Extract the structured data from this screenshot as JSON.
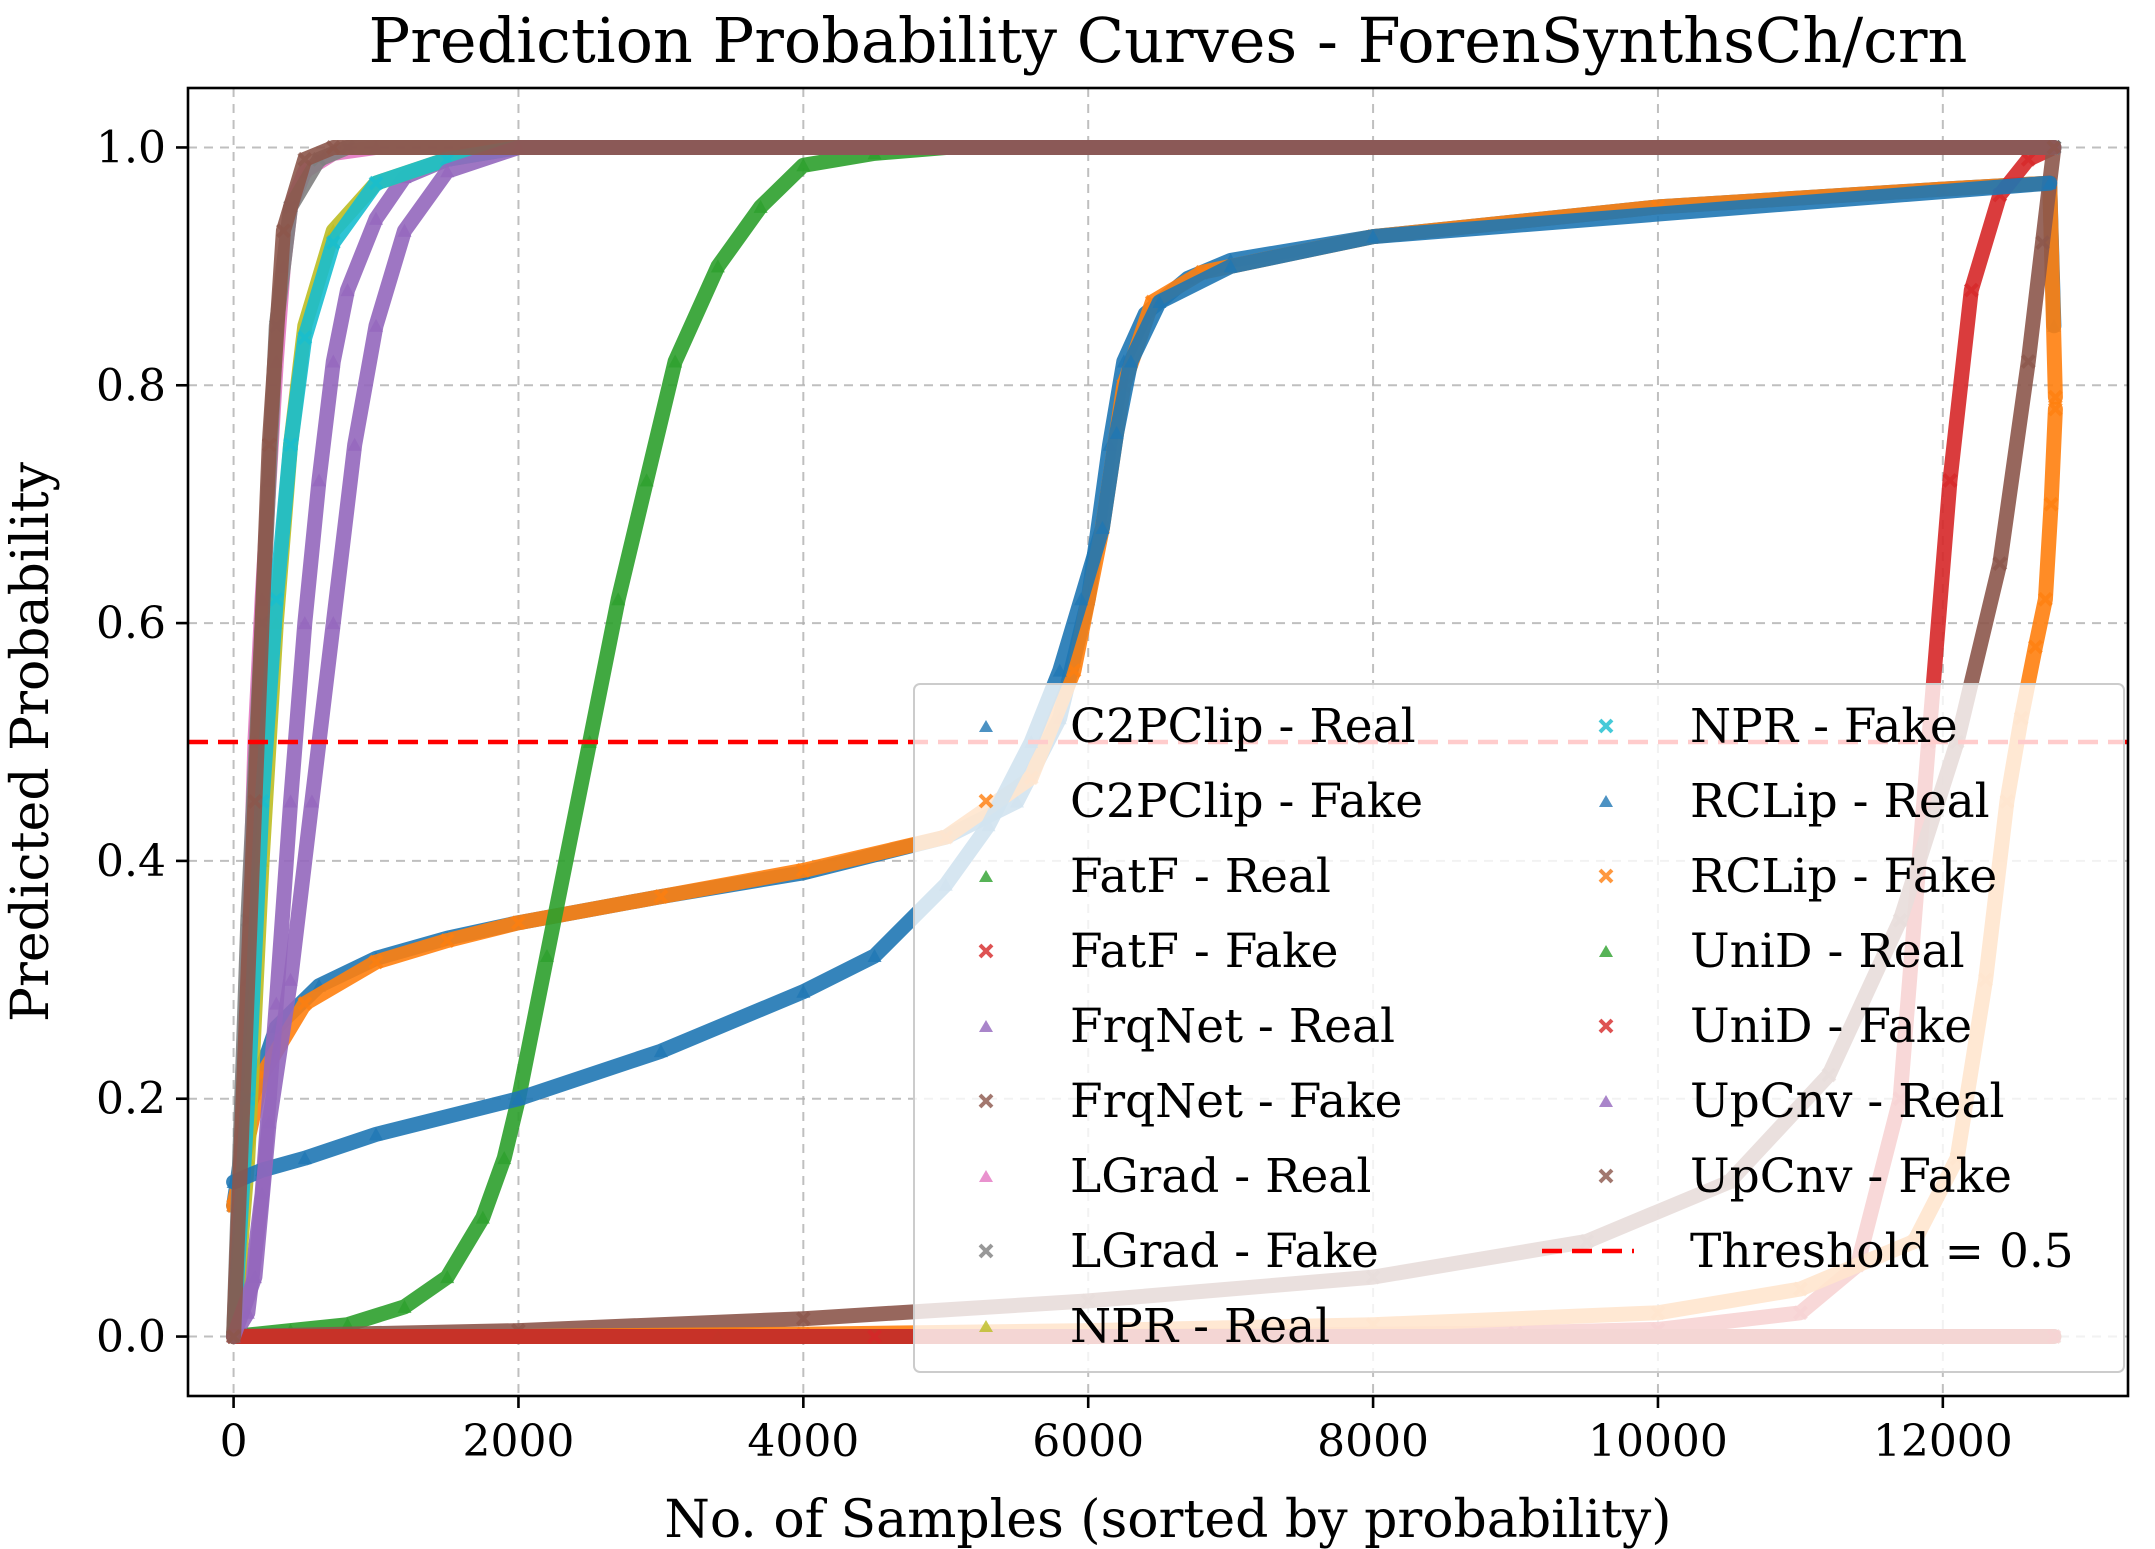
{
  "chart_data": {
    "type": "scatter",
    "title": "Prediction Probability Curves - ForenSynthsCh/crn",
    "xlabel": "No. of Samples (sorted by probability)",
    "ylabel": "Predicted Probability",
    "xlim": [
      -320,
      13300
    ],
    "ylim": [
      -0.05,
      1.05
    ],
    "xticks": [
      0,
      2000,
      4000,
      6000,
      8000,
      10000,
      12000
    ],
    "xtick_labels": [
      "0",
      "2000",
      "4000",
      "6000",
      "8000",
      "10000",
      "12000"
    ],
    "yticks": [
      0.0,
      0.2,
      0.4,
      0.6,
      0.8,
      1.0
    ],
    "ytick_labels": [
      "0.0",
      "0.2",
      "0.4",
      "0.6",
      "0.8",
      "1.0"
    ],
    "grid": true,
    "legend_position": "lower-right",
    "legend_columns": 2,
    "threshold": {
      "label": "Threshold = 0.5",
      "value": 0.5,
      "color": "#ff0000"
    },
    "series": [
      {
        "name": "C2PClip - Real",
        "color": "#1f77b4",
        "marker": "triangle",
        "points": [
          [
            0,
            0.11
          ],
          [
            100,
            0.19
          ],
          [
            300,
            0.26
          ],
          [
            600,
            0.295
          ],
          [
            1000,
            0.318
          ],
          [
            1500,
            0.335
          ],
          [
            2000,
            0.348
          ],
          [
            3000,
            0.37
          ],
          [
            4000,
            0.39
          ],
          [
            5000,
            0.42
          ],
          [
            5500,
            0.45
          ],
          [
            5800,
            0.52
          ],
          [
            6000,
            0.62
          ],
          [
            6150,
            0.75
          ],
          [
            6250,
            0.82
          ],
          [
            6400,
            0.86
          ],
          [
            6700,
            0.89
          ],
          [
            7000,
            0.905
          ],
          [
            8000,
            0.925
          ],
          [
            10000,
            0.95
          ],
          [
            12000,
            0.965
          ],
          [
            12750,
            0.97
          ],
          [
            12780,
            0.85
          ]
        ]
      },
      {
        "name": "C2PClip - Fake",
        "color": "#ff7f0e",
        "marker": "x",
        "points": [
          [
            0,
            0.11
          ],
          [
            200,
            0.22
          ],
          [
            500,
            0.28
          ],
          [
            1000,
            0.315
          ],
          [
            1500,
            0.333
          ],
          [
            2000,
            0.348
          ],
          [
            3000,
            0.37
          ],
          [
            4000,
            0.392
          ],
          [
            5000,
            0.42
          ],
          [
            5600,
            0.47
          ],
          [
            5900,
            0.56
          ],
          [
            6100,
            0.68
          ],
          [
            6250,
            0.8
          ],
          [
            6450,
            0.87
          ],
          [
            6800,
            0.895
          ],
          [
            8000,
            0.925
          ],
          [
            10000,
            0.95
          ],
          [
            12000,
            0.965
          ],
          [
            12750,
            0.97
          ],
          [
            12790,
            0.79
          ]
        ]
      },
      {
        "name": "FatF - Real",
        "color": "#2ca02c",
        "marker": "triangle",
        "points": [
          [
            0,
            0.0
          ],
          [
            400,
            0.005
          ],
          [
            800,
            0.01
          ],
          [
            1200,
            0.025
          ],
          [
            1500,
            0.05
          ],
          [
            1750,
            0.1
          ],
          [
            1900,
            0.15
          ],
          [
            2000,
            0.2
          ],
          [
            2200,
            0.32
          ],
          [
            2500,
            0.5
          ],
          [
            2700,
            0.62
          ],
          [
            2900,
            0.72
          ],
          [
            3100,
            0.82
          ],
          [
            3400,
            0.9
          ],
          [
            3700,
            0.95
          ],
          [
            4000,
            0.985
          ],
          [
            4500,
            0.995
          ],
          [
            5000,
            1.0
          ],
          [
            12780,
            1.0
          ]
        ]
      },
      {
        "name": "FatF - Fake",
        "color": "#d62728",
        "marker": "x",
        "points": [
          [
            0,
            0.0
          ],
          [
            6000,
            0.0
          ],
          [
            9000,
            0.003
          ],
          [
            10000,
            0.006
          ],
          [
            11000,
            0.02
          ],
          [
            11400,
            0.06
          ],
          [
            11700,
            0.2
          ],
          [
            11900,
            0.5
          ],
          [
            12050,
            0.72
          ],
          [
            12200,
            0.88
          ],
          [
            12400,
            0.96
          ],
          [
            12600,
            0.99
          ],
          [
            12780,
            1.0
          ]
        ]
      },
      {
        "name": "FrqNet - Real",
        "color": "#9467bd",
        "marker": "triangle",
        "points": [
          [
            0,
            0.0
          ],
          [
            100,
            0.02
          ],
          [
            200,
            0.12
          ],
          [
            300,
            0.28
          ],
          [
            400,
            0.45
          ],
          [
            500,
            0.6
          ],
          [
            600,
            0.72
          ],
          [
            700,
            0.82
          ],
          [
            800,
            0.88
          ],
          [
            1000,
            0.94
          ],
          [
            1200,
            0.975
          ],
          [
            1500,
            0.99
          ],
          [
            2000,
            1.0
          ],
          [
            12780,
            1.0
          ]
        ]
      },
      {
        "name": "FrqNet - Fake",
        "color": "#8c564b",
        "marker": "x",
        "points": [
          [
            0,
            0.0
          ],
          [
            2000,
            0.005
          ],
          [
            4000,
            0.015
          ],
          [
            6000,
            0.03
          ],
          [
            8000,
            0.05
          ],
          [
            9500,
            0.08
          ],
          [
            10500,
            0.13
          ],
          [
            11200,
            0.22
          ],
          [
            11700,
            0.35
          ],
          [
            12100,
            0.5
          ],
          [
            12400,
            0.65
          ],
          [
            12600,
            0.82
          ],
          [
            12700,
            0.92
          ],
          [
            12780,
            1.0
          ]
        ]
      },
      {
        "name": "LGrad - Real",
        "color": "#e377c2",
        "marker": "triangle",
        "points": [
          [
            0,
            0.0
          ],
          [
            50,
            0.1
          ],
          [
            100,
            0.3
          ],
          [
            150,
            0.5
          ],
          [
            200,
            0.62
          ],
          [
            250,
            0.72
          ],
          [
            300,
            0.82
          ],
          [
            350,
            0.9
          ],
          [
            400,
            0.95
          ],
          [
            500,
            0.98
          ],
          [
            700,
            0.995
          ],
          [
            1000,
            1.0
          ],
          [
            12780,
            1.0
          ]
        ]
      },
      {
        "name": "LGrad - Fake",
        "color": "#7f7f7f",
        "marker": "x",
        "points": [
          [
            0,
            0.0
          ],
          [
            100,
            0.35
          ],
          [
            200,
            0.6
          ],
          [
            300,
            0.85
          ],
          [
            400,
            0.95
          ],
          [
            600,
            0.99
          ],
          [
            800,
            1.0
          ],
          [
            12780,
            1.0
          ]
        ]
      },
      {
        "name": "NPR - Real",
        "color": "#bcbd22",
        "marker": "triangle",
        "points": [
          [
            0,
            0.0
          ],
          [
            100,
            0.15
          ],
          [
            200,
            0.4
          ],
          [
            300,
            0.6
          ],
          [
            400,
            0.75
          ],
          [
            500,
            0.85
          ],
          [
            700,
            0.93
          ],
          [
            1000,
            0.97
          ],
          [
            1500,
            0.99
          ],
          [
            2000,
            1.0
          ],
          [
            12780,
            1.0
          ]
        ]
      },
      {
        "name": "NPR - Fake",
        "color": "#17becf",
        "marker": "x",
        "points": [
          [
            0,
            0.0
          ],
          [
            100,
            0.2
          ],
          [
            200,
            0.45
          ],
          [
            300,
            0.62
          ],
          [
            400,
            0.75
          ],
          [
            500,
            0.84
          ],
          [
            700,
            0.92
          ],
          [
            1000,
            0.97
          ],
          [
            1500,
            0.99
          ],
          [
            2000,
            1.0
          ],
          [
            8700,
            1.0
          ],
          [
            10650,
            1.0
          ],
          [
            11800,
            1.0
          ],
          [
            12780,
            1.0
          ]
        ]
      },
      {
        "name": "RCLip - Real",
        "color": "#1f77b4",
        "marker": "triangle",
        "points": [
          [
            0,
            0.13
          ],
          [
            200,
            0.14
          ],
          [
            500,
            0.15
          ],
          [
            1000,
            0.17
          ],
          [
            2000,
            0.2
          ],
          [
            3000,
            0.24
          ],
          [
            4000,
            0.29
          ],
          [
            4500,
            0.32
          ],
          [
            5000,
            0.38
          ],
          [
            5300,
            0.43
          ],
          [
            5600,
            0.5
          ],
          [
            5800,
            0.56
          ],
          [
            5950,
            0.62
          ],
          [
            6100,
            0.68
          ],
          [
            6200,
            0.76
          ],
          [
            6300,
            0.82
          ],
          [
            6500,
            0.87
          ],
          [
            7000,
            0.9
          ],
          [
            8000,
            0.925
          ],
          [
            12750,
            0.97
          ]
        ]
      },
      {
        "name": "RCLip - Fake",
        "color": "#ff7f0e",
        "marker": "x",
        "points": [
          [
            0,
            0.0
          ],
          [
            2000,
            0.0
          ],
          [
            4000,
            0.002
          ],
          [
            6000,
            0.005
          ],
          [
            8000,
            0.01
          ],
          [
            10000,
            0.02
          ],
          [
            11000,
            0.04
          ],
          [
            11800,
            0.08
          ],
          [
            12100,
            0.15
          ],
          [
            12300,
            0.3
          ],
          [
            12450,
            0.45
          ],
          [
            12550,
            0.52
          ],
          [
            12650,
            0.58
          ],
          [
            12720,
            0.62
          ],
          [
            12760,
            0.7
          ],
          [
            12790,
            0.78
          ]
        ]
      },
      {
        "name": "UniD - Real",
        "color": "#2ca02c",
        "marker": "triangle",
        "points": [
          [
            0,
            0.0
          ],
          [
            3400,
            0.0
          ],
          [
            12780,
            0.0
          ]
        ]
      },
      {
        "name": "UniD - Fake",
        "color": "#d62728",
        "marker": "x",
        "points": [
          [
            0,
            0.0
          ],
          [
            4500,
            0.0
          ],
          [
            12780,
            0.0
          ]
        ]
      },
      {
        "name": "UpCnv - Real",
        "color": "#9467bd",
        "marker": "triangle",
        "points": [
          [
            0,
            0.0
          ],
          [
            150,
            0.05
          ],
          [
            250,
            0.18
          ],
          [
            400,
            0.3
          ],
          [
            550,
            0.45
          ],
          [
            700,
            0.6
          ],
          [
            850,
            0.75
          ],
          [
            1000,
            0.85
          ],
          [
            1200,
            0.93
          ],
          [
            1500,
            0.98
          ],
          [
            2000,
            1.0
          ],
          [
            12780,
            1.0
          ]
        ]
      },
      {
        "name": "UpCnv - Fake",
        "color": "#8c564b",
        "marker": "x",
        "points": [
          [
            0,
            0.0
          ],
          [
            150,
            0.45
          ],
          [
            250,
            0.75
          ],
          [
            350,
            0.93
          ],
          [
            500,
            0.99
          ],
          [
            700,
            1.0
          ],
          [
            12780,
            1.0
          ]
        ]
      }
    ]
  }
}
